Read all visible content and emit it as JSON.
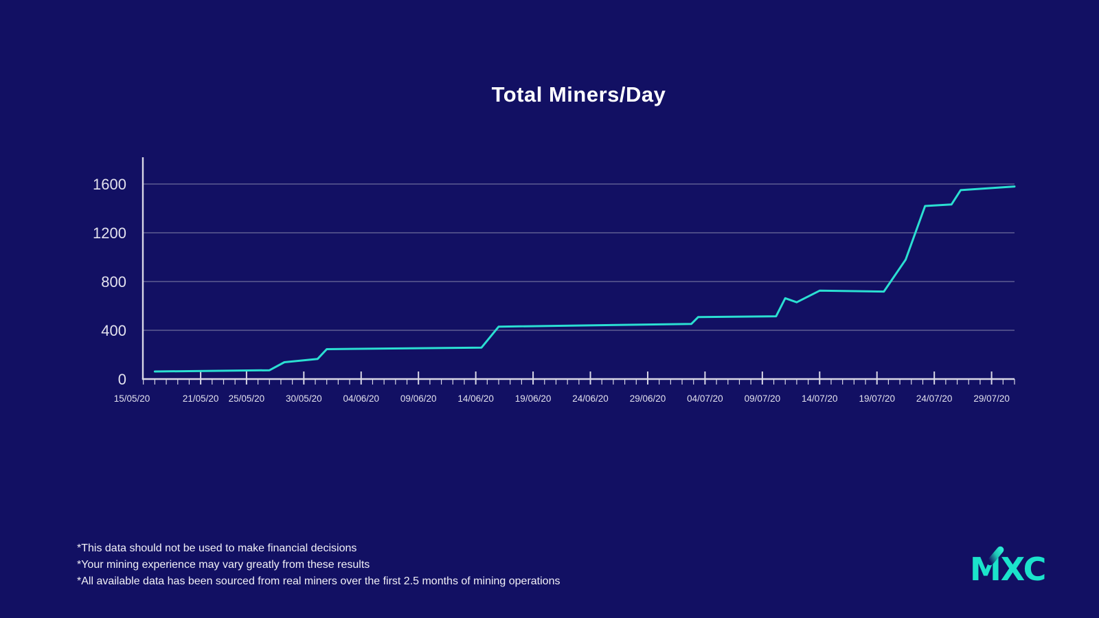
{
  "title": "Total Miners/Day",
  "footnotes": [
    "*This data should not be used to make financial decisions",
    "*Your mining experience may vary greatly from these results",
    "*All available data has been sourced from real miners over the first 2.5 months of mining operations"
  ],
  "logo": {
    "text": "MXC"
  },
  "colors": {
    "background": "#121063",
    "line": "#2BDFD2",
    "grid": "#6E6C9B",
    "axis": "#D9D8E6",
    "tick_label": "#E3E2EE",
    "title": "#FFFFFF",
    "logo": "#1BE3CB"
  },
  "chart_data": {
    "type": "line",
    "title": "Total Miners/Day",
    "xlabel": "",
    "ylabel": "",
    "grid": "horizontal",
    "legend": "none",
    "y_ticks": [
      0,
      400,
      800,
      1200,
      1600
    ],
    "ylim": [
      0,
      1820
    ],
    "x_tick_labels": [
      {
        "label": "15/05/20",
        "day": 0
      },
      {
        "label": "21/05/20",
        "day": 6
      },
      {
        "label": "25/05/20",
        "day": 10
      },
      {
        "label": "30/05/20",
        "day": 15
      },
      {
        "label": "04/06/20",
        "day": 20
      },
      {
        "label": "09/06/20",
        "day": 25
      },
      {
        "label": "14/06/20",
        "day": 30
      },
      {
        "label": "19/06/20",
        "day": 35
      },
      {
        "label": "24/06/20",
        "day": 40
      },
      {
        "label": "29/06/20",
        "day": 45
      },
      {
        "label": "04/07/20",
        "day": 50
      },
      {
        "label": "09/07/20",
        "day": 55
      },
      {
        "label": "14/07/20",
        "day": 60
      },
      {
        "label": "19/07/20",
        "day": 65
      },
      {
        "label": "24/07/20",
        "day": 70
      },
      {
        "label": "29/07/20",
        "day": 75
      }
    ],
    "minor_tick_day_range": [
      1,
      77
    ],
    "series": [
      {
        "name": "Total Miners",
        "points": [
          {
            "date": "17/05/20",
            "day": 2,
            "value": 62
          },
          {
            "date": "27/05/20",
            "day": 12,
            "value": 72
          },
          {
            "date": "28/05/20",
            "day": 13.3,
            "value": 138
          },
          {
            "date": "31/05/20",
            "day": 16.2,
            "value": 165
          },
          {
            "date": "01/06/20",
            "day": 17,
            "value": 245
          },
          {
            "date": "14/06/20",
            "day": 30.5,
            "value": 258
          },
          {
            "date": "16/06/20",
            "day": 32,
            "value": 430
          },
          {
            "date": "02/07/20",
            "day": 48.8,
            "value": 452
          },
          {
            "date": "03/07/20",
            "day": 49.4,
            "value": 508
          },
          {
            "date": "10/07/20",
            "day": 56.2,
            "value": 515
          },
          {
            "date": "11/07/20",
            "day": 57,
            "value": 663
          },
          {
            "date": "12/07/20",
            "day": 58,
            "value": 630
          },
          {
            "date": "14/07/20",
            "day": 60,
            "value": 725
          },
          {
            "date": "19/07/20",
            "day": 65.6,
            "value": 718
          },
          {
            "date": "21/07/20",
            "day": 67.5,
            "value": 980
          },
          {
            "date": "23/07/20",
            "day": 69.2,
            "value": 1420
          },
          {
            "date": "25/07/20",
            "day": 71.5,
            "value": 1432
          },
          {
            "date": "26/07/20",
            "day": 72.3,
            "value": 1550
          },
          {
            "date": "31/07/20",
            "day": 77,
            "value": 1580
          }
        ]
      }
    ]
  }
}
